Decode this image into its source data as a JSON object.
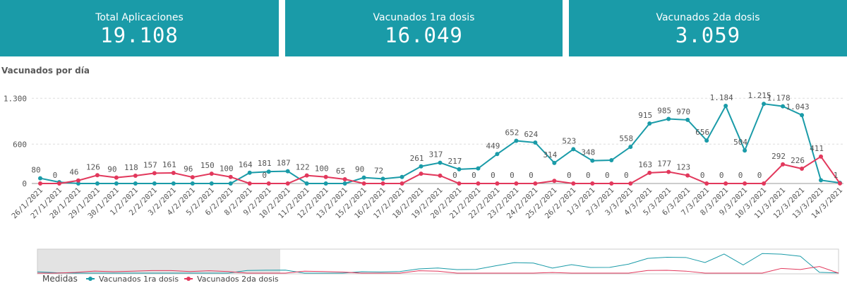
{
  "kpis": [
    {
      "title": "Total Aplicaciones",
      "value": "19.108"
    },
    {
      "title": "Vacunados 1ra dosis",
      "value": "16.049"
    },
    {
      "title": "Vacunados 2da dosis",
      "value": "3.059"
    }
  ],
  "chart_data": {
    "type": "line",
    "title": "Vacunados por día",
    "categories": [
      "26/1/2021",
      "27/1/2021",
      "28/1/2021",
      "29/1/2021",
      "30/1/2021",
      "1/2/2021",
      "2/2/2021",
      "3/2/2021",
      "4/2/2021",
      "5/2/2021",
      "6/2/2021",
      "8/2/2021",
      "9/2/2021",
      "10/2/2021",
      "11/2/2021",
      "12/2/2021",
      "13/2/2021",
      "15/2/2021",
      "16/2/2021",
      "17/2/2021",
      "18/2/2021",
      "19/2/2021",
      "20/2/2021",
      "21/2/2021",
      "22/2/2021",
      "23/2/2021",
      "24/2/2021",
      "25/2/2021",
      "26/2/2021",
      "1/3/2021",
      "2/3/2021",
      "3/3/2021",
      "4/3/2021",
      "5/3/2021",
      "6/3/2021",
      "7/3/2021",
      "8/3/2021",
      "9/3/2021",
      "10/3/2021",
      "11/3/2021",
      "12/3/2021",
      "13/3/2021",
      "14/3/2021"
    ],
    "series": [
      {
        "name": "Vacunados 1ra dosis",
        "color": "#1a9ba8",
        "values": [
          80,
          20,
          0,
          0,
          0,
          0,
          0,
          0,
          0,
          0,
          0,
          164,
          181,
          187,
          0,
          0,
          0,
          90,
          72,
          100,
          261,
          317,
          217,
          230,
          449,
          652,
          624,
          314,
          523,
          348,
          355,
          558,
          915,
          985,
          970,
          656,
          1184,
          504,
          1215,
          1178,
          1043,
          50,
          10
        ],
        "value_labels": [
          "80",
          null,
          null,
          null,
          null,
          null,
          null,
          null,
          null,
          null,
          null,
          "164",
          "181",
          "187",
          null,
          null,
          null,
          "90",
          "72",
          null,
          "261",
          "317",
          "217",
          null,
          "449",
          "652",
          "624",
          "314",
          "523",
          "348",
          null,
          "558",
          "915",
          "985",
          "970",
          "656",
          "1.184",
          "504",
          "1.215",
          "1.178",
          "1.043",
          null,
          null
        ]
      },
      {
        "name": "Vacunados 2da dosis",
        "color": "#e2385c",
        "values": [
          0,
          0,
          46,
          126,
          90,
          118,
          157,
          161,
          96,
          150,
          100,
          0,
          0,
          0,
          122,
          100,
          65,
          0,
          0,
          0,
          150,
          120,
          0,
          0,
          0,
          0,
          0,
          40,
          0,
          0,
          0,
          0,
          163,
          177,
          123,
          0,
          0,
          0,
          0,
          292,
          226,
          411,
          1
        ],
        "value_labels": [
          null,
          "0",
          "46",
          "126",
          "90",
          "118",
          "157",
          "161",
          "96",
          "150",
          "100",
          null,
          "0",
          null,
          "122",
          "100",
          "65",
          null,
          null,
          null,
          null,
          null,
          "0",
          "0",
          "0",
          "0",
          "0",
          null,
          "0",
          "0",
          "0",
          "0",
          "163",
          "177",
          "123",
          "0",
          "0",
          "0",
          "0",
          "292",
          "226",
          "411",
          "1"
        ]
      }
    ],
    "ylim": [
      0,
      1400
    ],
    "yticks": [
      0,
      600,
      {
        "value": 1300,
        "label": "1.300"
      }
    ],
    "grid": true,
    "legend_title": "Medidas",
    "legend": "bottom-left"
  }
}
